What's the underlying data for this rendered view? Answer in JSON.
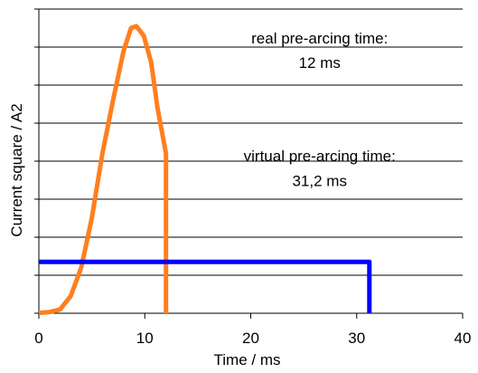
{
  "chart_data": {
    "type": "line",
    "xlabel": "Time / ms",
    "ylabel": "Current square / A2",
    "xlim": [
      0,
      40
    ],
    "ylim": [
      0,
      8
    ],
    "x_ticks": [
      0,
      10,
      20,
      30,
      40
    ],
    "y_tick_count": 9,
    "grid": "horizontal",
    "series": [
      {
        "color": "#FF7F1F",
        "points": [
          [
            0,
            0.01
          ],
          [
            1,
            0.03
          ],
          [
            2,
            0.1
          ],
          [
            3,
            0.45
          ],
          [
            4,
            1.2
          ],
          [
            5,
            2.5
          ],
          [
            6,
            4.2
          ],
          [
            7,
            5.6
          ],
          [
            8,
            6.9
          ],
          [
            8.7,
            7.5
          ],
          [
            9.2,
            7.55
          ],
          [
            9.9,
            7.3
          ],
          [
            10.6,
            6.6
          ],
          [
            11.2,
            5.4
          ],
          [
            12,
            4.2
          ],
          [
            12,
            0
          ]
        ]
      },
      {
        "color": "#0000FF",
        "points": [
          [
            0,
            1.35
          ],
          [
            31.2,
            1.35
          ],
          [
            31.2,
            0
          ]
        ]
      }
    ],
    "annotations": [
      {
        "lines": [
          "real pre-arcing time:",
          "12 ms"
        ],
        "x": 26.5,
        "y": [
          7.1,
          6.45
        ]
      },
      {
        "lines": [
          "virtual pre-arcing time:",
          "31,2 ms"
        ],
        "x": 26.5,
        "y": [
          4.0,
          3.35
        ]
      }
    ]
  }
}
